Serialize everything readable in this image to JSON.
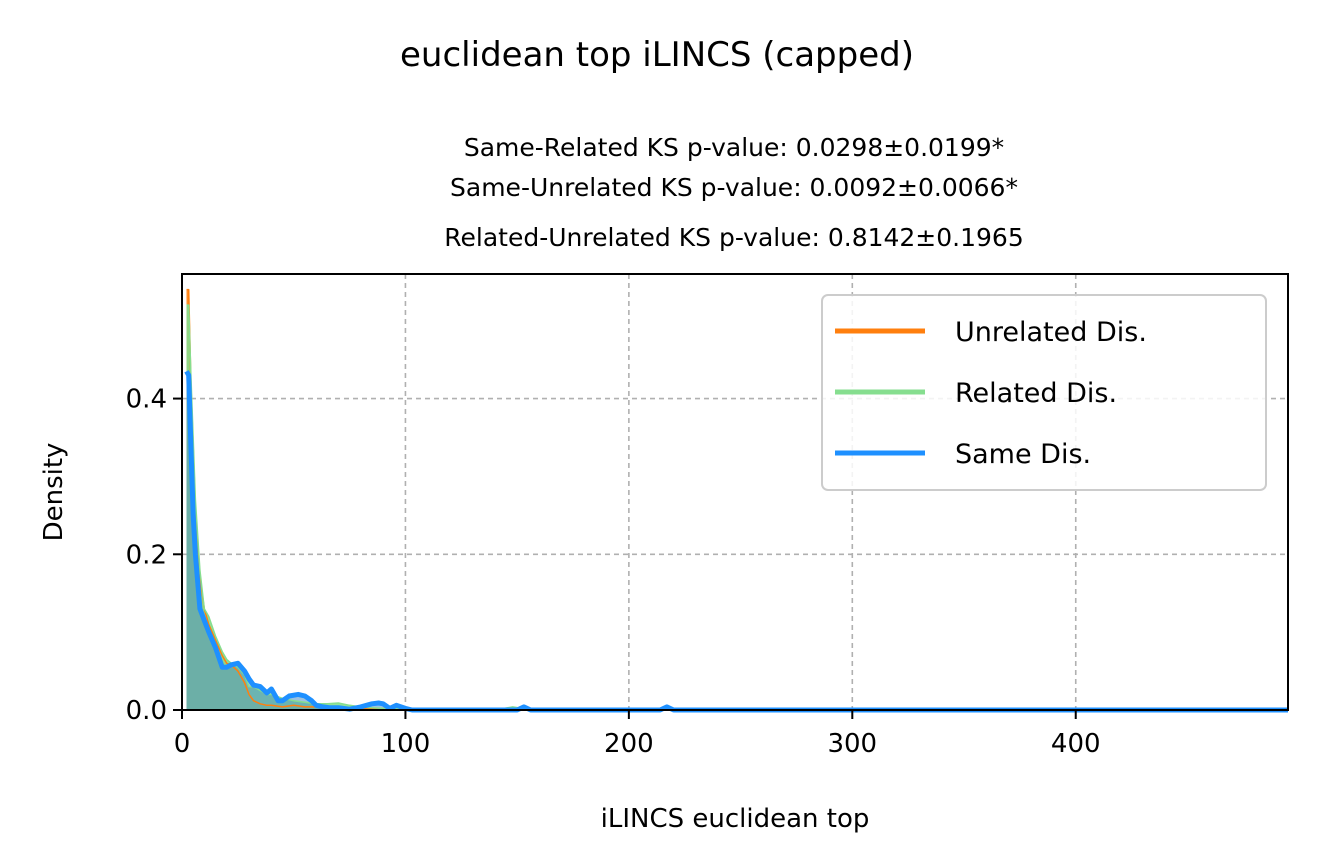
{
  "chart_data": {
    "type": "area",
    "title": "euclidean top iLINCS (capped)",
    "subtitle_lines": [
      "Same-Related KS p-value: 0.0298±0.0199*",
      "Same-Unrelated KS p-value: 0.0092±0.0066*",
      "Related-Unrelated KS p-value: 0.8142±0.1965"
    ],
    "xlabel": "iLINCS euclidean top",
    "ylabel": "Density",
    "xlim": [
      0,
      495
    ],
    "ylim": [
      0,
      0.56
    ],
    "xticks": [
      0,
      100,
      200,
      300,
      400
    ],
    "yticks": [
      0.0,
      0.2,
      0.4
    ],
    "ytick_labels": [
      "0.0",
      "0.2",
      "0.4"
    ],
    "grid": true,
    "legend_position": "top-right",
    "series": [
      {
        "name": "Unrelated Dis.",
        "color": "#ff7f0e",
        "fill": "#ff7f0e",
        "x": [
          2,
          3,
          4,
          6,
          8,
          10,
          12,
          15,
          18,
          20,
          22,
          25,
          28,
          30,
          32,
          35,
          38,
          40,
          45,
          50,
          55,
          60,
          65,
          70,
          75,
          80,
          85,
          90,
          95,
          100,
          110,
          120,
          140,
          150,
          160,
          200,
          220,
          250,
          300,
          350,
          400,
          450,
          495
        ],
        "y": [
          0.54,
          0.54,
          0.42,
          0.26,
          0.17,
          0.13,
          0.11,
          0.09,
          0.07,
          0.06,
          0.058,
          0.05,
          0.035,
          0.02,
          0.012,
          0.008,
          0.006,
          0.006,
          0.004,
          0.006,
          0.004,
          0.004,
          0.003,
          0.003,
          0.002,
          0.002,
          0.002,
          0.002,
          0.001,
          0.001,
          0.001,
          0.0,
          0.0,
          0.0,
          0.0,
          0.0,
          0.0,
          0.0,
          0.0,
          0.0,
          0.0,
          0.0,
          0.0
        ]
      },
      {
        "name": "Related Dis.",
        "color": "#86de8f",
        "fill": "#86de8f",
        "x": [
          2,
          3,
          4,
          6,
          8,
          10,
          12,
          15,
          18,
          20,
          22,
          25,
          28,
          30,
          32,
          35,
          38,
          40,
          45,
          50,
          55,
          60,
          65,
          70,
          75,
          80,
          85,
          90,
          95,
          100,
          110,
          120,
          140,
          148,
          152,
          160,
          200,
          220,
          250,
          300,
          350,
          400,
          450,
          495
        ],
        "y": [
          0.52,
          0.52,
          0.43,
          0.27,
          0.18,
          0.13,
          0.12,
          0.095,
          0.075,
          0.065,
          0.06,
          0.055,
          0.045,
          0.03,
          0.03,
          0.025,
          0.02,
          0.02,
          0.015,
          0.012,
          0.01,
          0.008,
          0.008,
          0.009,
          0.006,
          0.004,
          0.003,
          0.002,
          0.002,
          0.002,
          0.001,
          0.0,
          0.0,
          0.004,
          0.002,
          0.0,
          0.0,
          0.0,
          0.0,
          0.0,
          0.0,
          0.0,
          0.0,
          0.0
        ]
      },
      {
        "name": "Same Dis.",
        "color": "#1e90ff",
        "fill": "#4d8fc4",
        "x": [
          2,
          3,
          4,
          5,
          6,
          8,
          10,
          12,
          15,
          18,
          20,
          22,
          25,
          28,
          30,
          32,
          35,
          38,
          40,
          43,
          45,
          48,
          52,
          55,
          58,
          60,
          63,
          66,
          70,
          75,
          80,
          85,
          88,
          90,
          93,
          96,
          100,
          103,
          110,
          120,
          140,
          150,
          153,
          156,
          160,
          200,
          214,
          217,
          220,
          225,
          250,
          300,
          350,
          400,
          450,
          495
        ],
        "y": [
          0.435,
          0.43,
          0.34,
          0.25,
          0.2,
          0.13,
          0.115,
          0.1,
          0.08,
          0.055,
          0.055,
          0.058,
          0.06,
          0.05,
          0.04,
          0.032,
          0.03,
          0.022,
          0.027,
          0.012,
          0.012,
          0.018,
          0.02,
          0.018,
          0.012,
          0.006,
          0.004,
          0.003,
          0.003,
          0.001,
          0.004,
          0.008,
          0.009,
          0.008,
          0.002,
          0.006,
          0.002,
          0.0,
          0.0,
          0.0,
          0.0,
          0.0,
          0.004,
          0.0,
          0.0,
          0.0,
          0.0,
          0.004,
          0.0,
          0.0,
          0.0,
          0.0,
          0.0,
          0.0,
          0.0,
          0.0
        ]
      }
    ]
  }
}
